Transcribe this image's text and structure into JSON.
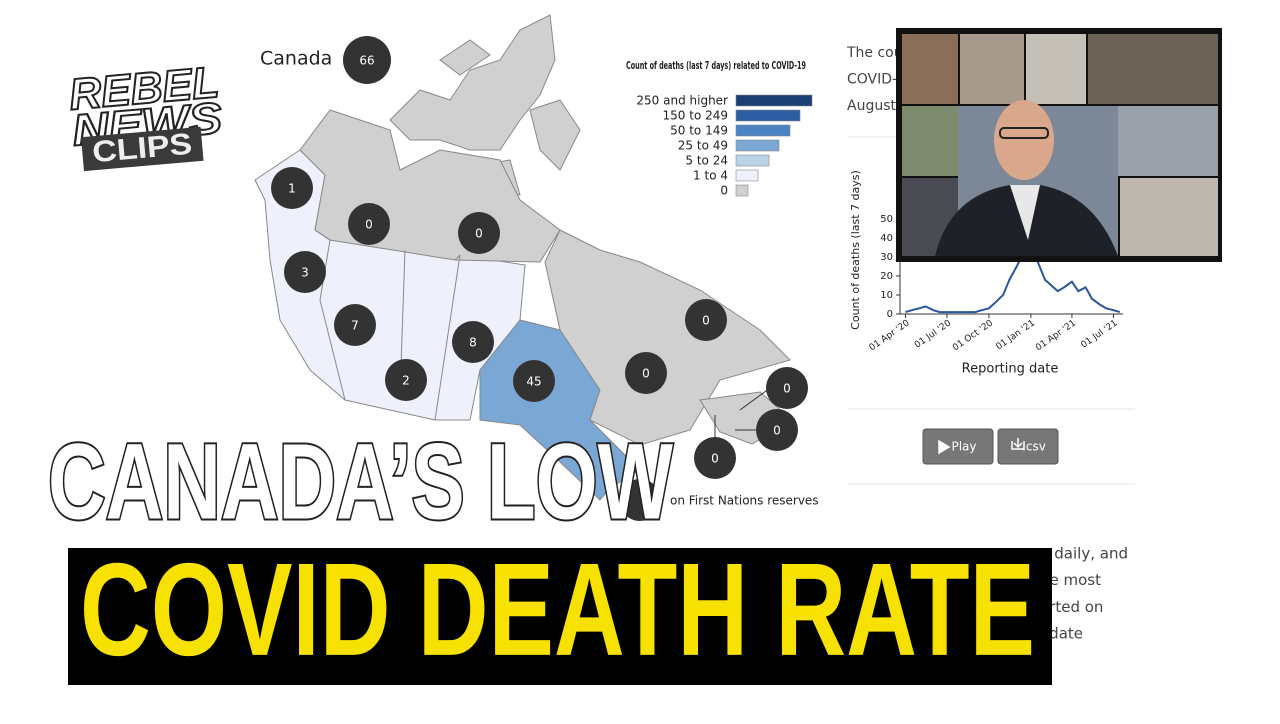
{
  "logo": {
    "line1": "REBEL",
    "line2": "NEWS",
    "line3": "CLIPS"
  },
  "map": {
    "country": "Canada",
    "country_count": 66,
    "region_counts": [
      1,
      0,
      0,
      3,
      7,
      2,
      8,
      45,
      0,
      0,
      0,
      0,
      0
    ],
    "legend": {
      "title": "Count of deaths (last 7 days) related to COVID-19",
      "items": [
        {
          "label": "250 and higher",
          "color": "#1c3f73"
        },
        {
          "label": "150 to 249",
          "color": "#2d5ea4"
        },
        {
          "label": "50 to 149",
          "color": "#4a82c4"
        },
        {
          "label": "25 to 49",
          "color": "#7ba7d4"
        },
        {
          "label": "5 to 24",
          "color": "#bcd2e6"
        },
        {
          "label": "1 to 4",
          "color": "#eef1fb"
        },
        {
          "label": "0",
          "color": "#d0d0d0"
        }
      ]
    },
    "note": "on First Nations reserves"
  },
  "side_text": [
    "The cou",
    "COVID-",
    "August"
  ],
  "chart_data": {
    "type": "line",
    "y_label": "Count of deaths (last 7 days)",
    "x_label": "Reporting date",
    "x": [
      "2020-04-01",
      "2020-04-15",
      "2020-05-01",
      "2020-05-15",
      "2020-06-01",
      "2020-06-15",
      "2020-07-01",
      "2020-07-15",
      "2020-08-01",
      "2020-08-15",
      "2020-09-01",
      "2020-09-15",
      "2020-10-01",
      "2020-10-15",
      "2020-11-01",
      "2020-11-15",
      "2020-12-01",
      "2020-12-15",
      "2021-01-01",
      "2021-01-15",
      "2021-02-01",
      "2021-02-15",
      "2021-03-01",
      "2021-03-15",
      "2021-04-01",
      "2021-04-15",
      "2021-05-01",
      "2021-05-15",
      "2021-06-01",
      "2021-06-15",
      "2021-07-01",
      "2021-07-15"
    ],
    "series": [
      {
        "name": "Deaths",
        "color": "#2a55a0",
        "values": [
          1,
          2,
          3,
          4,
          2,
          1,
          1,
          1,
          1,
          1,
          1,
          2,
          3,
          6,
          10,
          18,
          25,
          32,
          30,
          28,
          18,
          15,
          12,
          14,
          17,
          12,
          14,
          8,
          5,
          3,
          2,
          1
        ]
      }
    ],
    "xlim": [
      "2020-03-20",
      "2021-07-22"
    ],
    "xticks": [
      {
        "value": "2020-04-01",
        "label": "01 Apr '20"
      },
      {
        "value": "2020-07-01",
        "label": "01 Jul '20"
      },
      {
        "value": "2020-10-01",
        "label": "01 Oct '20"
      },
      {
        "value": "2021-01-01",
        "label": "01 Jan '21"
      },
      {
        "value": "2021-04-01",
        "label": "01 Apr '21"
      },
      {
        "value": "2021-07-01",
        "label": "01 Jul '21"
      }
    ],
    "ylim": [
      0,
      52
    ],
    "yticks": [
      0,
      10,
      20,
      30,
      40,
      50
    ]
  },
  "buttons": [
    "Play",
    ".csv"
  ],
  "bottom_text": [
    "g daily, and",
    "he most",
    "orted on",
    "odate"
  ],
  "headline": {
    "line1": "CANADA’S LOW",
    "line2": "COVID DEATH RATE"
  }
}
